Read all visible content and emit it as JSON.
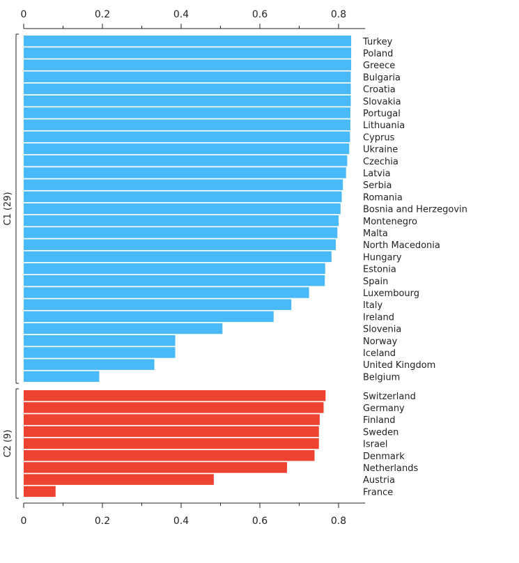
{
  "chart_data": {
    "type": "bar",
    "orientation": "horizontal",
    "xlim": [
      0,
      0.85
    ],
    "xticks": [
      0,
      0.2,
      0.4,
      0.6,
      0.8
    ],
    "xtick_labels": [
      "0",
      "0.2",
      "0.4",
      "0.6",
      "0.8"
    ],
    "axis_position": "top and bottom",
    "grid": false,
    "series": [
      {
        "name": "C1",
        "label": "C1 (29)",
        "color": "#4ab9f7",
        "categories": [
          "Turkey",
          "Poland",
          "Greece",
          "Bulgaria",
          "Croatia",
          "Slovakia",
          "Portugal",
          "Lithuania",
          "Cyprus",
          "Ukraine",
          "Czechia",
          "Latvia",
          "Serbia",
          "Romania",
          "Bosnia and Herzegovin",
          "Montenegro",
          "Malta",
          "North Macedonia",
          "Hungary",
          "Estonia",
          "Spain",
          "Luxembourg",
          "Italy",
          "Ireland",
          "Slovenia",
          "Norway",
          "Iceland",
          "United Kingdom",
          "Belgium"
        ],
        "values": [
          0.832,
          0.832,
          0.832,
          0.831,
          0.831,
          0.831,
          0.83,
          0.83,
          0.829,
          0.827,
          0.822,
          0.819,
          0.811,
          0.808,
          0.805,
          0.8,
          0.797,
          0.793,
          0.782,
          0.766,
          0.765,
          0.725,
          0.68,
          0.635,
          0.505,
          0.385,
          0.385,
          0.332,
          0.192
        ]
      },
      {
        "name": "C2",
        "label": "C2 (9)",
        "color": "#ee4331",
        "categories": [
          "Switzerland",
          "Germany",
          "Finland",
          "Sweden",
          "Israel",
          "Denmark",
          "Netherlands",
          "Austria",
          "France"
        ],
        "values": [
          0.767,
          0.762,
          0.752,
          0.75,
          0.75,
          0.739,
          0.669,
          0.483,
          0.081
        ]
      }
    ]
  }
}
